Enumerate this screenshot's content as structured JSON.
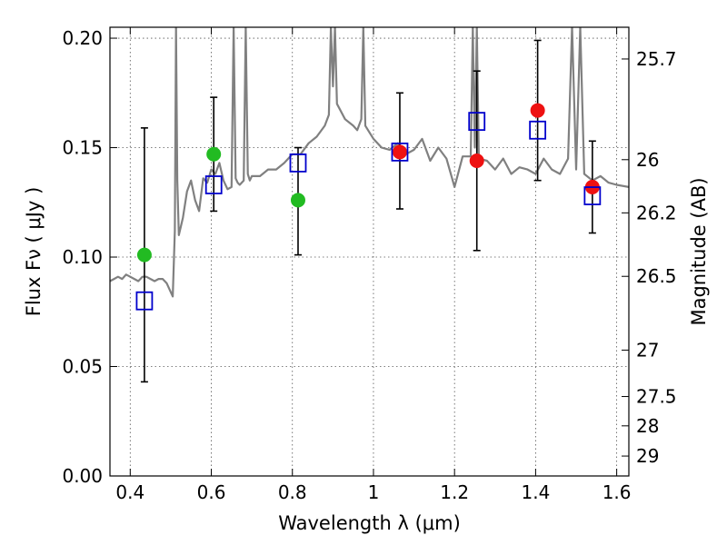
{
  "chart_data": {
    "type": "scatter",
    "xlabel": "Wavelength  λ (μm)",
    "ylabel": "Flux  Fν  ( μJy )",
    "ylabel_right": "Magnitude (AB)",
    "xlim": [
      0.35,
      1.63
    ],
    "ylim": [
      0.0,
      0.205
    ],
    "grid": true,
    "x_ticks": [
      0.4,
      0.6,
      0.8,
      1.0,
      1.2,
      1.4,
      1.6
    ],
    "x_tick_labels": [
      "0.4",
      "0.6",
      "0.8",
      "1",
      "1.2",
      "1.4",
      "1.6"
    ],
    "y_ticks": [
      0.0,
      0.05,
      0.1,
      0.15,
      0.2
    ],
    "y_tick_labels": [
      "0.00",
      "0.05",
      "0.10",
      "0.15",
      "0.20"
    ],
    "right_ticks": [
      {
        "label": "25.7",
        "flux": 0.1905
      },
      {
        "label": "26",
        "flux": 0.1445
      },
      {
        "label": "26.2",
        "flux": 0.1202
      },
      {
        "label": "26.5",
        "flux": 0.0912
      },
      {
        "label": "27",
        "flux": 0.0575
      },
      {
        "label": "27.5",
        "flux": 0.0363
      },
      {
        "label": "28",
        "flux": 0.0229
      },
      {
        "label": "29",
        "flux": 0.0091
      }
    ],
    "colors": {
      "model": "#808080",
      "green": "#22bb22",
      "red": "#ee1111",
      "model_box": "#0000cc",
      "error": "#000000",
      "grid": "#555555"
    },
    "model_spectrum": {
      "x": [
        0.35,
        0.36,
        0.37,
        0.38,
        0.39,
        0.4,
        0.41,
        0.42,
        0.43,
        0.44,
        0.45,
        0.46,
        0.47,
        0.48,
        0.49,
        0.5,
        0.505,
        0.51,
        0.513,
        0.516,
        0.52,
        0.53,
        0.54,
        0.55,
        0.56,
        0.57,
        0.58,
        0.59,
        0.6,
        0.61,
        0.62,
        0.63,
        0.64,
        0.65,
        0.655,
        0.66,
        0.665,
        0.67,
        0.68,
        0.685,
        0.69,
        0.695,
        0.7,
        0.72,
        0.74,
        0.76,
        0.78,
        0.8,
        0.82,
        0.84,
        0.86,
        0.88,
        0.89,
        0.895,
        0.9,
        0.905,
        0.91,
        0.93,
        0.95,
        0.96,
        0.97,
        0.975,
        0.98,
        1.0,
        1.02,
        1.04,
        1.06,
        1.08,
        1.1,
        1.12,
        1.14,
        1.16,
        1.18,
        1.2,
        1.22,
        1.24,
        1.245,
        1.25,
        1.255,
        1.26,
        1.28,
        1.3,
        1.32,
        1.34,
        1.36,
        1.38,
        1.4,
        1.42,
        1.44,
        1.46,
        1.48,
        1.49,
        1.5,
        1.51,
        1.52,
        1.54,
        1.56,
        1.58,
        1.6,
        1.63
      ],
      "y": [
        0.089,
        0.09,
        0.091,
        0.09,
        0.092,
        0.091,
        0.09,
        0.089,
        0.091,
        0.091,
        0.09,
        0.089,
        0.09,
        0.09,
        0.088,
        0.084,
        0.082,
        0.112,
        0.205,
        0.135,
        0.11,
        0.118,
        0.13,
        0.135,
        0.126,
        0.121,
        0.136,
        0.134,
        0.14,
        0.138,
        0.143,
        0.135,
        0.131,
        0.132,
        0.205,
        0.136,
        0.134,
        0.133,
        0.135,
        0.205,
        0.138,
        0.135,
        0.137,
        0.137,
        0.14,
        0.14,
        0.143,
        0.147,
        0.147,
        0.152,
        0.155,
        0.16,
        0.165,
        0.205,
        0.178,
        0.205,
        0.17,
        0.163,
        0.16,
        0.158,
        0.163,
        0.205,
        0.16,
        0.154,
        0.15,
        0.149,
        0.152,
        0.147,
        0.149,
        0.154,
        0.144,
        0.15,
        0.145,
        0.132,
        0.146,
        0.146,
        0.205,
        0.15,
        0.205,
        0.145,
        0.144,
        0.14,
        0.145,
        0.138,
        0.141,
        0.14,
        0.138,
        0.145,
        0.14,
        0.138,
        0.145,
        0.205,
        0.14,
        0.205,
        0.138,
        0.135,
        0.137,
        0.134,
        0.133,
        0.132
      ]
    },
    "model_photometry": [
      {
        "x": 0.435,
        "y": 0.08
      },
      {
        "x": 0.606,
        "y": 0.133
      },
      {
        "x": 0.814,
        "y": 0.143
      },
      {
        "x": 1.065,
        "y": 0.148
      },
      {
        "x": 1.255,
        "y": 0.162
      },
      {
        "x": 1.405,
        "y": 0.158
      },
      {
        "x": 1.54,
        "y": 0.128
      }
    ],
    "observations": [
      {
        "x": 0.435,
        "y": 0.101,
        "yerr_lo": 0.043,
        "yerr_hi": 0.159,
        "color": "green"
      },
      {
        "x": 0.606,
        "y": 0.147,
        "yerr_lo": 0.121,
        "yerr_hi": 0.173,
        "color": "green"
      },
      {
        "x": 0.814,
        "y": 0.126,
        "yerr_lo": 0.101,
        "yerr_hi": 0.15,
        "color": "green"
      },
      {
        "x": 1.065,
        "y": 0.148,
        "yerr_lo": 0.122,
        "yerr_hi": 0.175,
        "color": "red"
      },
      {
        "x": 1.255,
        "y": 0.144,
        "yerr_lo": 0.103,
        "yerr_hi": 0.185,
        "color": "red"
      },
      {
        "x": 1.405,
        "y": 0.167,
        "yerr_lo": 0.135,
        "yerr_hi": 0.199,
        "color": "red"
      },
      {
        "x": 1.54,
        "y": 0.132,
        "yerr_lo": 0.111,
        "yerr_hi": 0.153,
        "color": "red"
      }
    ]
  }
}
